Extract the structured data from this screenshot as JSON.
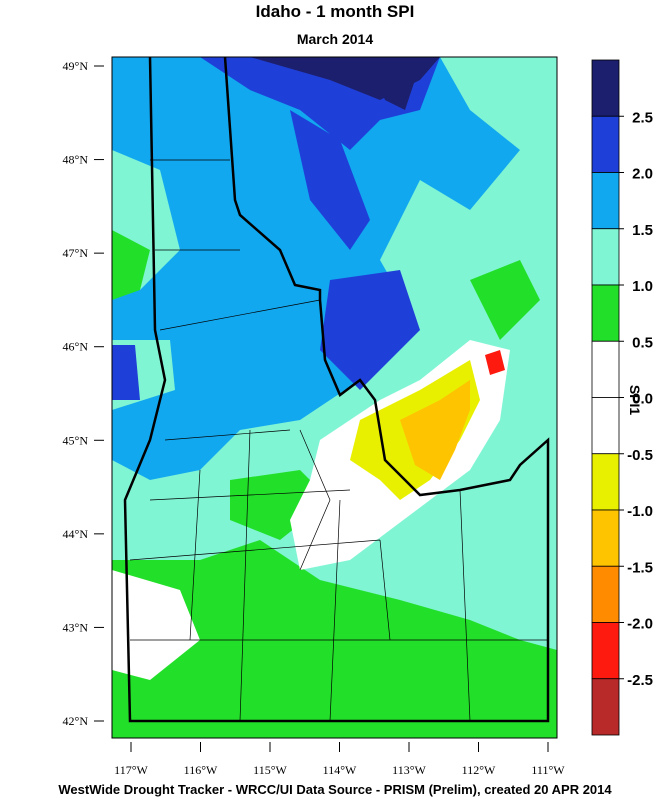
{
  "map": {
    "title": "Idaho - 1 month SPI",
    "subtitle": "March 2014",
    "lat_ticks": [
      {
        "value": 49,
        "label": "49°N"
      },
      {
        "value": 48,
        "label": "48°N"
      },
      {
        "value": 47,
        "label": "47°N"
      },
      {
        "value": 46,
        "label": "46°N"
      },
      {
        "value": 45,
        "label": "45°N"
      },
      {
        "value": 44,
        "label": "44°N"
      },
      {
        "value": 43,
        "label": "43°N"
      },
      {
        "value": 42,
        "label": "42°N"
      }
    ],
    "lon_ticks": [
      {
        "value": -117,
        "label": "117°W"
      },
      {
        "value": -116,
        "label": "116°W"
      },
      {
        "value": -115,
        "label": "115°W"
      },
      {
        "value": -114,
        "label": "114°W"
      },
      {
        "value": -113,
        "label": "113°W"
      },
      {
        "value": -112,
        "label": "112°W"
      },
      {
        "value": -111,
        "label": "111°W"
      }
    ],
    "colorbar": {
      "title": "SPI1",
      "levels": [
        2.5,
        {
          "value": 2,
          "label": "2.0"
        },
        1.5,
        {
          "value": 1,
          "label": "1.0"
        },
        0.5,
        {
          "value": 0,
          "label": "0.0"
        },
        -0.5,
        {
          "value": -1,
          "label": "-1.0"
        },
        -1.5,
        {
          "value": -2,
          "label": "-2.0"
        },
        -2.5
      ],
      "colors": [
        "#1c1f6e",
        "#1f40d8",
        "#12a8f0",
        "#80f5d4",
        "#22e02a",
        "#ffffff",
        "#ffffff",
        "#e8f000",
        "#ffc400",
        "#ff8c00",
        "#ff1a10",
        "#b82a2a"
      ]
    },
    "footer": "WestWide Drought Tracker - WRCC/UI  Data Source - PRISM (Prelim), created 20 APR 2014"
  }
}
